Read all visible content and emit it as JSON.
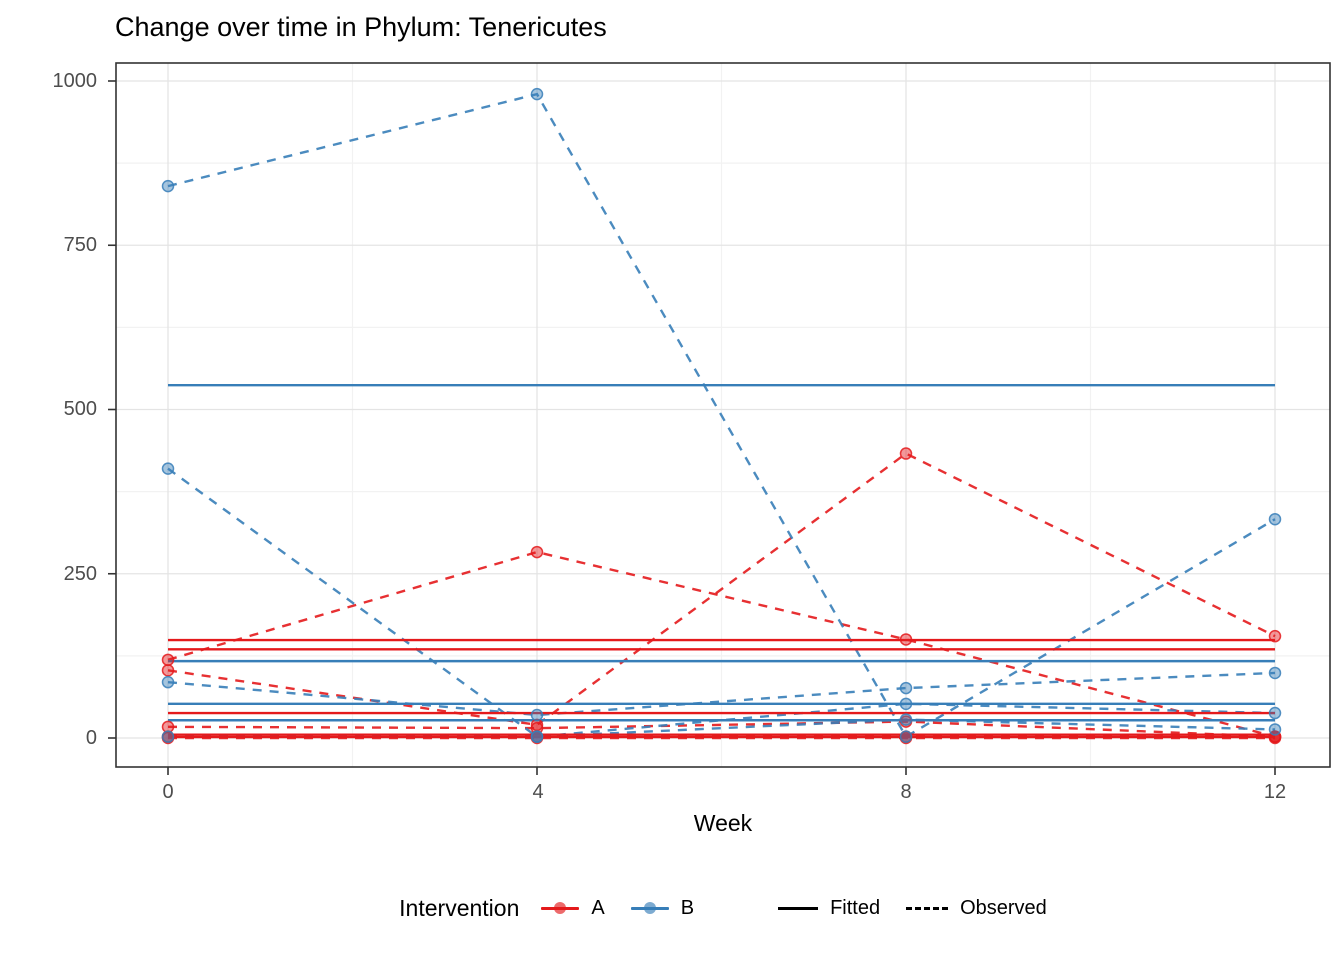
{
  "chart_data": {
    "type": "line",
    "title": "Change over time in Phylum: Tenericutes",
    "xlabel": "Week",
    "ylabel": "",
    "xlim": [
      0,
      12
    ],
    "ylim": [
      0,
      1000
    ],
    "grid": true,
    "legend_position": "bottom",
    "x_ticks": [
      "0",
      "4",
      "8",
      "12"
    ],
    "x_tick_values": [
      0,
      4,
      8,
      12
    ],
    "y_ticks": [
      "0",
      "250",
      "500",
      "750",
      "1000"
    ],
    "y_tick_values": [
      0,
      250,
      500,
      750,
      1000
    ],
    "x_minor_gridlines": [
      2,
      6,
      10
    ],
    "y_minor_gridlines": [
      125,
      375,
      625,
      875
    ],
    "weeks": [
      0,
      4,
      8,
      12
    ],
    "series": [
      {
        "id": "A1",
        "group": "A",
        "color": "#e41a1c",
        "fitted": 135,
        "observed": [
          119,
          283,
          150,
          2
        ]
      },
      {
        "id": "A2",
        "group": "A",
        "color": "#e41a1c",
        "fitted": 149,
        "observed": [
          103,
          20,
          433,
          155
        ]
      },
      {
        "id": "A3",
        "group": "A",
        "color": "#e41a1c",
        "fitted": 38,
        "observed": [
          17,
          15,
          25,
          2
        ]
      },
      {
        "id": "A4",
        "group": "A",
        "color": "#e41a1c",
        "fitted": 5,
        "observed": [
          2,
          2,
          2,
          2
        ]
      },
      {
        "id": "A5",
        "group": "A",
        "color": "#e41a1c",
        "fitted": 1.5,
        "observed": [
          0,
          0,
          0,
          0
        ]
      },
      {
        "id": "B1",
        "group": "B",
        "color": "#377eb8",
        "fitted": 537,
        "observed": [
          840,
          980,
          2,
          333
        ]
      },
      {
        "id": "B2",
        "group": "B",
        "color": "#377eb8",
        "fitted": 117,
        "observed": [
          410,
          2,
          52,
          38
        ]
      },
      {
        "id": "B3",
        "group": "B",
        "color": "#377eb8",
        "fitted": 52,
        "observed": [
          85,
          35,
          76,
          99
        ]
      },
      {
        "id": "B4",
        "group": "B",
        "color": "#377eb8",
        "fitted": 27,
        "observed": [
          2,
          2,
          28,
          13
        ]
      }
    ]
  },
  "legend": {
    "title": "Intervention",
    "items": [
      {
        "label": "A",
        "color": "#e41a1c"
      },
      {
        "label": "B",
        "color": "#377eb8"
      }
    ],
    "linetype_items": [
      {
        "label": "Fitted",
        "style": "solid"
      },
      {
        "label": "Observed",
        "style": "dashed"
      }
    ]
  }
}
